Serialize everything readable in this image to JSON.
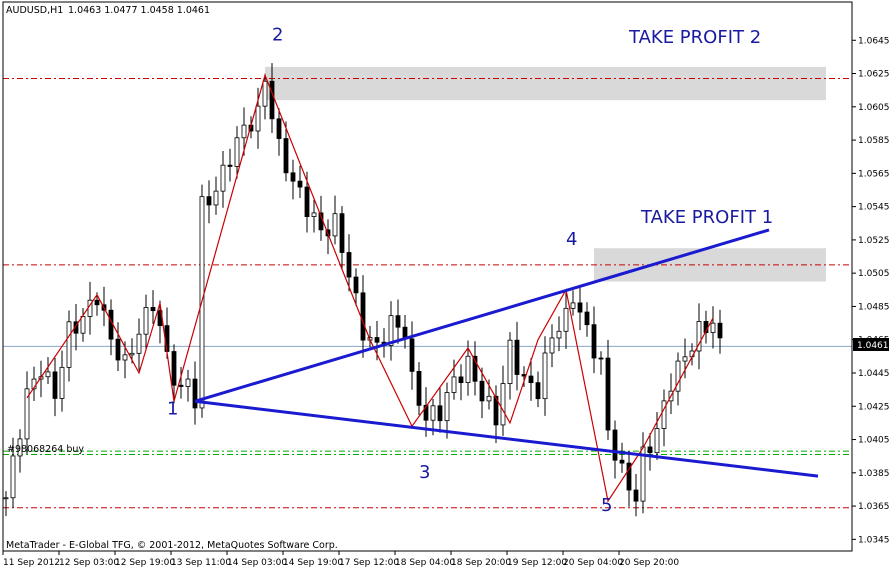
{
  "header": {
    "symbol": "AUDUSD,H1",
    "ohlc": "1.0463 1.0477 1.0458 1.0461"
  },
  "footer": {
    "copyright": "MetaTrader - E-Global TFG, © 2001-2012, MetaQuotes Software Corp."
  },
  "chart_data": {
    "type": "candlestick",
    "symbol": "AUDUSD",
    "timeframe": "H1",
    "ylim": [
      1.0338,
      1.0668
    ],
    "price_ticks": [
      "1.0645",
      "1.0625",
      "1.0605",
      "1.0585",
      "1.0565",
      "1.0545",
      "1.0525",
      "1.0505",
      "1.0485",
      "1.0465",
      "1.0445",
      "1.0425",
      "1.0405",
      "1.0385",
      "1.0365",
      "1.0345"
    ],
    "current_price": "1.0461",
    "time_ticks": [
      {
        "label": "11 Sep 2012",
        "i": 0
      },
      {
        "label": "12 Sep 03:00",
        "i": 8
      },
      {
        "label": "12 Sep 19:00",
        "i": 16
      },
      {
        "label": "13 Sep 11:00",
        "i": 24
      },
      {
        "label": "14 Sep 03:00",
        "i": 32
      },
      {
        "label": "14 Sep 19:00",
        "i": 40
      },
      {
        "label": "17 Sep 12:00",
        "i": 48
      },
      {
        "label": "18 Sep 04:00",
        "i": 56
      },
      {
        "label": "18 Sep 20:00",
        "i": 64
      },
      {
        "label": "19 Sep 12:00",
        "i": 72
      },
      {
        "label": "20 Sep 04:00",
        "i": 80
      },
      {
        "label": "20 Sep 20:00",
        "i": 88
      }
    ],
    "bars": 95,
    "close_path": [
      [
        0,
        1.037
      ],
      [
        3,
        1.0432
      ],
      [
        5,
        1.0448
      ],
      [
        7,
        1.0432
      ],
      [
        9,
        1.047
      ],
      [
        11,
        1.0478
      ],
      [
        13,
        1.0492
      ],
      [
        15,
        1.0465
      ],
      [
        17,
        1.045
      ],
      [
        19,
        1.047
      ],
      [
        21,
        1.0488
      ],
      [
        23,
        1.0455
      ],
      [
        25,
        1.0432
      ],
      [
        26,
        1.0442
      ],
      [
        27,
        1.0428
      ],
      [
        28,
        1.0545
      ],
      [
        30,
        1.0555
      ],
      [
        32,
        1.0575
      ],
      [
        34,
        1.0592
      ],
      [
        36,
        1.06
      ],
      [
        37,
        1.0622
      ],
      [
        39,
        1.058
      ],
      [
        41,
        1.056
      ],
      [
        43,
        1.0545
      ],
      [
        45,
        1.053
      ],
      [
        47,
        1.0535
      ],
      [
        49,
        1.0505
      ],
      [
        51,
        1.047
      ],
      [
        53,
        1.046
      ],
      [
        55,
        1.0475
      ],
      [
        57,
        1.047
      ],
      [
        58,
        1.044
      ],
      [
        60,
        1.0418
      ],
      [
        62,
        1.0422
      ],
      [
        64,
        1.044
      ],
      [
        66,
        1.045
      ],
      [
        68,
        1.0432
      ],
      [
        70,
        1.0418
      ],
      [
        72,
        1.046
      ],
      [
        74,
        1.044
      ],
      [
        76,
        1.0435
      ],
      [
        78,
        1.0468
      ],
      [
        80,
        1.0478
      ],
      [
        81,
        1.0492
      ],
      [
        83,
        1.047
      ],
      [
        85,
        1.045
      ],
      [
        86,
        1.041
      ],
      [
        88,
        1.0385
      ],
      [
        90,
        1.037
      ],
      [
        91,
        1.0395
      ],
      [
        93,
        1.041
      ],
      [
        95,
        1.044
      ],
      [
        97,
        1.0455
      ],
      [
        99,
        1.047
      ],
      [
        101,
        1.0476
      ],
      [
        102,
        1.0461
      ]
    ],
    "zigzag": [
      [
        3,
        1.043
      ],
      [
        13,
        1.0492
      ],
      [
        19,
        1.0445
      ],
      [
        22,
        1.0487
      ],
      [
        24,
        1.0428
      ],
      [
        37,
        1.0624
      ],
      [
        52,
        1.0465
      ],
      [
        58,
        1.0413
      ],
      [
        66,
        1.046
      ],
      [
        72,
        1.0415
      ],
      [
        76,
        1.0465
      ],
      [
        80,
        1.0495
      ],
      [
        86,
        1.0368
      ],
      [
        91,
        1.04
      ],
      [
        101,
        1.0478
      ]
    ],
    "trendlines": [
      {
        "from": [
          27,
          1.0428
        ],
        "to": [
          109,
          1.0531
        ],
        "color": "#1a1ad0"
      },
      {
        "from": [
          27,
          1.0428
        ],
        "to": [
          116,
          1.0383
        ],
        "color": "#1a1ad0"
      }
    ],
    "horizontal_lines": [
      {
        "price": 1.0622,
        "color": "#cc0000",
        "style": "dashdot"
      },
      {
        "price": 1.051,
        "color": "#cc0000",
        "style": "dashdot"
      },
      {
        "price": 1.0398,
        "color": "#00aa00",
        "style": "dashdot"
      },
      {
        "price": 1.0396,
        "color": "#00aa00",
        "style": "dashdot"
      },
      {
        "price": 1.0364,
        "color": "#cc0000",
        "style": "dashdot"
      },
      {
        "price": 1.0461,
        "color": "#8aa6c8",
        "style": "solid"
      }
    ],
    "zones": [
      {
        "label": "TAKE PROFIT 2",
        "top": 1.0629,
        "bottom": 1.0609,
        "from": 37
      },
      {
        "label": "TAKE PROFIT 1",
        "top": 1.052,
        "bottom": 1.05,
        "from": 84
      }
    ],
    "wave_labels": [
      {
        "text": "1",
        "i": 23,
        "price": 1.042
      },
      {
        "text": "2",
        "i": 38,
        "price": 1.0645
      },
      {
        "text": "3",
        "i": 59,
        "price": 1.0382
      },
      {
        "text": "4",
        "i": 80,
        "price": 1.0522
      },
      {
        "text": "5",
        "i": 85,
        "price": 1.0362
      }
    ],
    "order_label": "#98068264 buy",
    "annotations": [
      "TAKE PROFIT 2",
      "TAKE PROFIT 1"
    ]
  }
}
